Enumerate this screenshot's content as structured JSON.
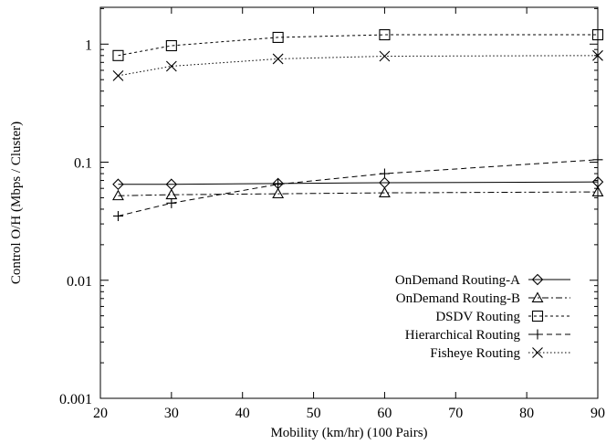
{
  "chart_data": {
    "type": "line",
    "title": "",
    "xlabel": "Mobility (km/hr) (100 Pairs)",
    "ylabel": "Control O/H (Mbps / Cluster)",
    "xlim": [
      20,
      90
    ],
    "ylim": [
      0.001,
      2
    ],
    "yscale": "log",
    "grid": false,
    "legend_position": "right",
    "x_ticks": [
      20,
      30,
      40,
      50,
      60,
      70,
      80,
      90
    ],
    "x_tick_labels": [
      "20",
      "30",
      "40",
      "50",
      "60",
      "70",
      "80",
      "90"
    ],
    "y_ticks": [
      0.001,
      0.01,
      0.1,
      1
    ],
    "y_tick_labels": [
      "0.001",
      "0.01",
      "0.1",
      "1"
    ],
    "x": [
      22.5,
      30,
      45,
      60,
      90
    ],
    "series": [
      {
        "name": "OnDemand Routing-A",
        "marker": "diamond",
        "dash": "",
        "values": [
          0.065,
          0.065,
          0.066,
          0.067,
          0.068
        ]
      },
      {
        "name": "OnDemand Routing-B",
        "marker": "triangle",
        "dash": "7 3 2 3",
        "values": [
          0.052,
          0.053,
          0.054,
          0.055,
          0.056
        ]
      },
      {
        "name": "DSDV Routing",
        "marker": "square",
        "dash": "3 3",
        "values": [
          0.8,
          0.97,
          1.14,
          1.2,
          1.2
        ]
      },
      {
        "name": "Hierarchical Routing",
        "marker": "plus",
        "dash": "6 4",
        "values": [
          0.035,
          0.045,
          0.065,
          0.08,
          0.105
        ]
      },
      {
        "name": "Fisheye Routing",
        "marker": "cross",
        "dash": "1.5 2.5",
        "values": [
          0.54,
          0.65,
          0.75,
          0.79,
          0.8
        ]
      }
    ]
  }
}
